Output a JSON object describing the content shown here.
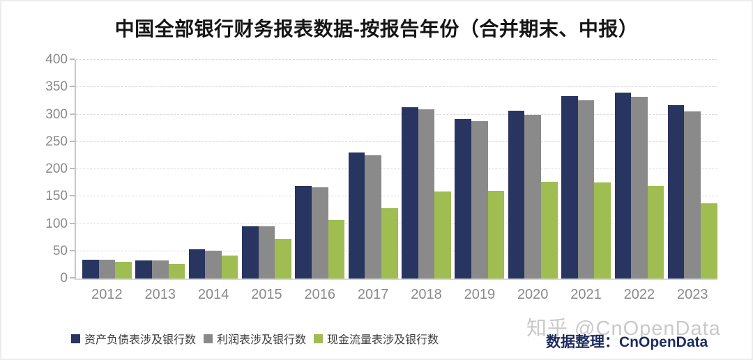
{
  "title": "中国全部银行财务报表数据-按报告年份（合并期末、中报）",
  "watermark": "知乎 @CnOpenData",
  "source_label": "数据整理：CnOpenData",
  "colors": {
    "series_balance": "#273560",
    "series_income": "#8a8a8a",
    "series_cashflow": "#9fbd51",
    "grid": "#d9d9d9",
    "axis": "#c7c7c7",
    "tick_text": "#8a8a8a",
    "title_text": "#151515",
    "source_text": "#1c2b5e",
    "watermark_text": "#c9c9c9"
  },
  "chart_data": {
    "type": "bar",
    "title": "中国全部银行财务报表数据-按报告年份（合并期末、中报）",
    "xlabel": "",
    "ylabel": "",
    "categories": [
      "2012",
      "2013",
      "2014",
      "2015",
      "2016",
      "2017",
      "2018",
      "2019",
      "2020",
      "2021",
      "2022",
      "2023"
    ],
    "series": [
      {
        "name": "资产负债表涉及银行数",
        "color": "#273560",
        "values": [
          34,
          33,
          53,
          95,
          169,
          230,
          314,
          292,
          307,
          334,
          340,
          317
        ]
      },
      {
        "name": "利润表涉及银行数",
        "color": "#8a8a8a",
        "values": [
          35,
          33,
          51,
          95,
          167,
          226,
          310,
          288,
          300,
          326,
          333,
          306
        ]
      },
      {
        "name": "现金流量表涉及银行数",
        "color": "#9fbd51",
        "values": [
          31,
          27,
          42,
          73,
          107,
          129,
          159,
          160,
          177,
          176,
          169,
          137
        ]
      }
    ],
    "ylim": [
      0,
      400
    ],
    "yticks": [
      0,
      50,
      100,
      150,
      200,
      250,
      300,
      350,
      400
    ],
    "grid": true,
    "gridline_style": "dashed",
    "legend_position": "bottom-left"
  }
}
